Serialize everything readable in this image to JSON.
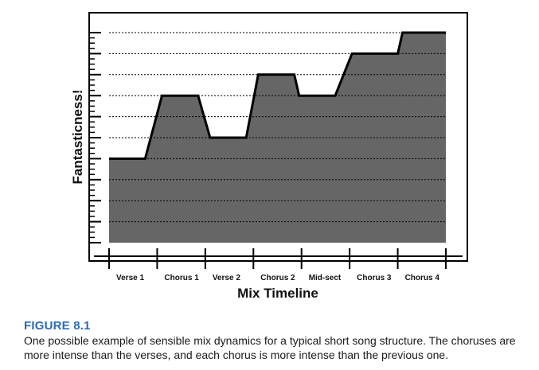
{
  "chart_data": {
    "type": "area",
    "title": "",
    "xlabel": "Mix Timeline",
    "ylabel": "Fantasticness!",
    "categories": [
      "Verse 1",
      "Chorus 1",
      "Verse 2",
      "Chorus 2",
      "Mid-sect",
      "Chorus 3",
      "Chorus 4"
    ],
    "profile": [
      {
        "t": 0.0,
        "level": 4
      },
      {
        "t": 0.75,
        "level": 4
      },
      {
        "t": 1.1,
        "level": 7
      },
      {
        "t": 1.85,
        "level": 7
      },
      {
        "t": 2.1,
        "level": 5
      },
      {
        "t": 2.85,
        "level": 5
      },
      {
        "t": 3.1,
        "level": 8
      },
      {
        "t": 3.85,
        "level": 8
      },
      {
        "t": 3.95,
        "level": 7
      },
      {
        "t": 4.7,
        "level": 7
      },
      {
        "t": 5.05,
        "level": 9
      },
      {
        "t": 6.0,
        "level": 9
      },
      {
        "t": 6.1,
        "level": 10
      },
      {
        "t": 7.0,
        "level": 10
      }
    ],
    "xlim": [
      0,
      7
    ],
    "ylim": [
      0,
      10
    ],
    "grid": true,
    "fill_color": "#666666",
    "line_color": "#000000"
  },
  "figure": {
    "label": "FIGURE 8.1",
    "caption": "One possible example of sensible mix dynamics for a typical short song structure. The choruses are more intense than the verses, and each chorus is more intense than the previous one.",
    "label_color": "#2a6bb5"
  }
}
